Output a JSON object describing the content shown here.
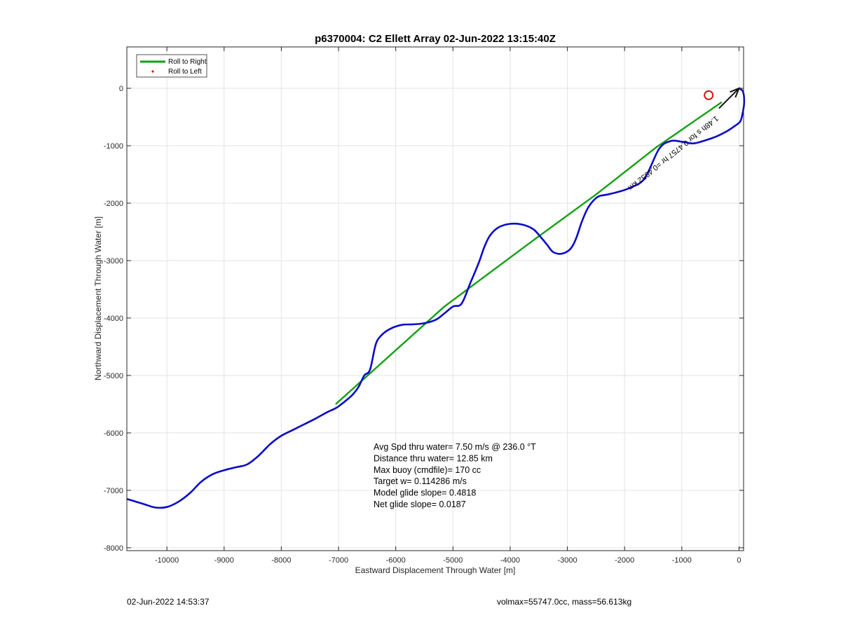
{
  "chart_data": {
    "type": "line",
    "title": "p6370004: C2 Ellett Array 02-Jun-2022 13:15:40Z",
    "xlabel": "Eastward Displacement Through Water [m]",
    "ylabel": "Northward Displacement Through Water [m]",
    "xlim": [
      -10700,
      80
    ],
    "ylim": [
      -8050,
      720
    ],
    "xticks": [
      -10000,
      -9000,
      -8000,
      -7000,
      -6000,
      -5000,
      -4000,
      -3000,
      -2000,
      -1000,
      0
    ],
    "yticks": [
      0,
      -1000,
      -2000,
      -3000,
      -4000,
      -5000,
      -6000,
      -7000,
      -8000
    ],
    "grid": true,
    "legend": {
      "location": "top-left",
      "entries": [
        {
          "label": "Roll to Right",
          "color": "#13a013",
          "style": "line"
        },
        {
          "label": "Roll to Left",
          "color": "#dd1111",
          "style": "dot"
        }
      ]
    },
    "series": [
      {
        "color": "#0a0ac8",
        "x": [
          0,
          70,
          90,
          60,
          20,
          -80,
          -200,
          -400,
          -600,
          -800,
          -1000,
          -1200,
          -1400,
          -1650,
          -1900,
          -2100,
          -2300,
          -2450,
          -2550,
          -2650,
          -2750,
          -2850,
          -2950,
          -3100,
          -3250,
          -3350,
          -3450,
          -3600,
          -3800,
          -4000,
          -4200,
          -4350,
          -4450,
          -4550,
          -4700,
          -4850,
          -5000,
          -5150,
          -5300,
          -5500,
          -5700,
          -5900,
          -6100,
          -6250,
          -6350,
          -6450,
          -6550,
          -6650,
          -6750,
          -6850,
          -6950,
          -7050,
          -7200,
          -7400,
          -7600,
          -7800,
          -8000,
          -8200,
          -8400,
          -8600,
          -8800,
          -9000,
          -9200,
          -9400,
          -9600,
          -9800,
          -10000,
          -10200,
          -10400,
          -10600,
          -10700
        ],
        "y": [
          0,
          -60,
          -250,
          -450,
          -580,
          -660,
          -740,
          -840,
          -910,
          -960,
          -930,
          -920,
          -1060,
          -1570,
          -1730,
          -1800,
          -1850,
          -1880,
          -1960,
          -2100,
          -2330,
          -2620,
          -2800,
          -2880,
          -2850,
          -2730,
          -2610,
          -2450,
          -2370,
          -2360,
          -2420,
          -2560,
          -2760,
          -3040,
          -3400,
          -3750,
          -3800,
          -3920,
          -4030,
          -4090,
          -4110,
          -4120,
          -4190,
          -4300,
          -4460,
          -4900,
          -5000,
          -5200,
          -5330,
          -5420,
          -5500,
          -5570,
          -5640,
          -5750,
          -5850,
          -5950,
          -6050,
          -6200,
          -6400,
          -6550,
          -6600,
          -6650,
          -6720,
          -6850,
          -7050,
          -7200,
          -7290,
          -7300,
          -7240,
          -7180,
          -7150
        ]
      },
      {
        "color": "#13a013",
        "x": [
          -7050,
          -5150,
          -3600,
          -2500,
          -1450,
          -300
        ],
        "y": [
          -5500,
          -3800,
          -2650,
          -1850,
          -1030,
          -240
        ]
      }
    ],
    "surface_marker": {
      "x": -530,
      "y": -120
    },
    "arrow": {
      "x": [
        -350,
        0
      ],
      "y": [
        -350,
        0
      ]
    },
    "path_annotation": "1.48h s for 0.4757 hr =0.4052 km",
    "stats": [
      "Avg Spd thru water=  7.50 m/s @ 236.0 °T",
      "Distance thru water= 12.85 km",
      "Max buoy (cmdfile)= 170 cc",
      "Target w= 0.114286 m/s",
      "Model glide slope= 0.4818",
      "Net glide slope= 0.0187"
    ]
  },
  "footer": {
    "timestamp": "02-Jun-2022 14:53:37",
    "right": "volmax=55747.0cc, mass=56.613kg"
  }
}
